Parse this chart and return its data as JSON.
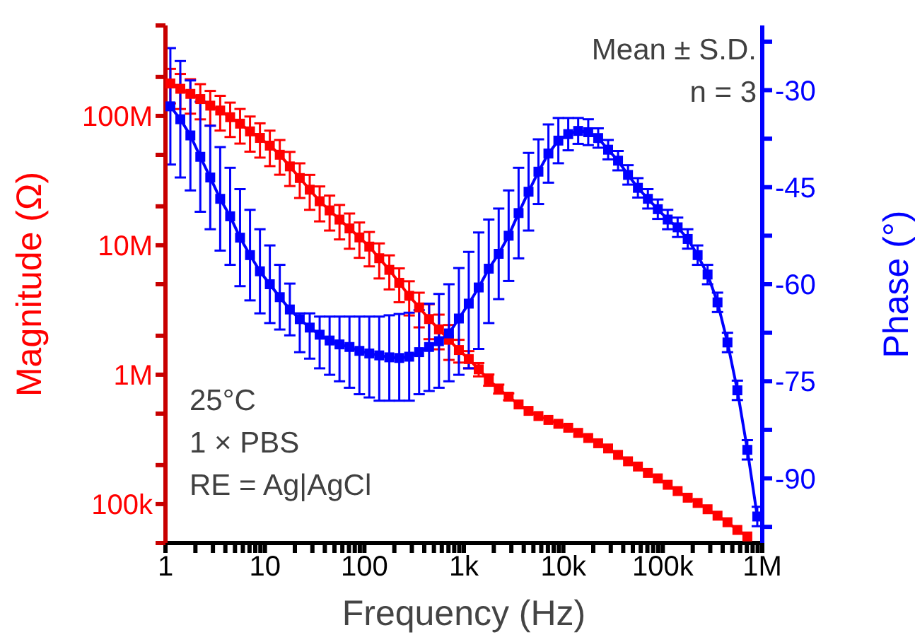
{
  "chart_data": {
    "type": "line",
    "xlabel": "Frequency (Hz)",
    "ylabel": "Magnitude (Ω)",
    "y2label": "Phase (°)",
    "annotations": [
      "Mean ± S.D.",
      "n = 3",
      "25°C",
      "1 × PBS",
      "RE = Ag|AgCl"
    ],
    "log": "xy",
    "marker": "square",
    "xlim": [
      1,
      1000000
    ],
    "xticks": [
      {
        "value": 1,
        "label": "1"
      },
      {
        "value": 2,
        "label": null
      },
      {
        "value": 3,
        "label": null
      },
      {
        "value": 4,
        "label": null
      },
      {
        "value": 5,
        "label": null
      },
      {
        "value": 6,
        "label": null
      },
      {
        "value": 7,
        "label": null
      },
      {
        "value": 8,
        "label": null
      },
      {
        "value": 9,
        "label": null
      },
      {
        "value": 10,
        "label": "10"
      },
      {
        "value": 20,
        "label": null
      },
      {
        "value": 30,
        "label": null
      },
      {
        "value": 40,
        "label": null
      },
      {
        "value": 50,
        "label": null
      },
      {
        "value": 60,
        "label": null
      },
      {
        "value": 70,
        "label": null
      },
      {
        "value": 80,
        "label": null
      },
      {
        "value": 90,
        "label": null
      },
      {
        "value": 100,
        "label": "100"
      },
      {
        "value": 200,
        "label": null
      },
      {
        "value": 300,
        "label": null
      },
      {
        "value": 400,
        "label": null
      },
      {
        "value": 500,
        "label": null
      },
      {
        "value": 600,
        "label": null
      },
      {
        "value": 700,
        "label": null
      },
      {
        "value": 800,
        "label": null
      },
      {
        "value": 900,
        "label": null
      },
      {
        "value": 1000,
        "label": "1k"
      },
      {
        "value": 2000,
        "label": null
      },
      {
        "value": 3000,
        "label": null
      },
      {
        "value": 4000,
        "label": null
      },
      {
        "value": 5000,
        "label": null
      },
      {
        "value": 6000,
        "label": null
      },
      {
        "value": 7000,
        "label": null
      },
      {
        "value": 8000,
        "label": null
      },
      {
        "value": 9000,
        "label": null
      },
      {
        "value": 10000,
        "label": "10k"
      },
      {
        "value": 20000,
        "label": null
      },
      {
        "value": 30000,
        "label": null
      },
      {
        "value": 40000,
        "label": null
      },
      {
        "value": 50000,
        "label": null
      },
      {
        "value": 60000,
        "label": null
      },
      {
        "value": 70000,
        "label": null
      },
      {
        "value": 80000,
        "label": null
      },
      {
        "value": 90000,
        "label": null
      },
      {
        "value": 100000,
        "label": "100k"
      },
      {
        "value": 200000,
        "label": null
      },
      {
        "value": 300000,
        "label": null
      },
      {
        "value": 400000,
        "label": null
      },
      {
        "value": 500000,
        "label": null
      },
      {
        "value": 600000,
        "label": null
      },
      {
        "value": 700000,
        "label": null
      },
      {
        "value": 800000,
        "label": null
      },
      {
        "value": 900000,
        "label": null
      },
      {
        "value": 1000000,
        "label": "1M"
      }
    ],
    "ylim": [
      50000,
      500000000
    ],
    "yticks": [
      {
        "value": 50000,
        "label": null
      },
      {
        "value": 100000,
        "label": "100k"
      },
      {
        "value": 200000,
        "label": null
      },
      {
        "value": 500000,
        "label": null
      },
      {
        "value": 1000000,
        "label": "1M"
      },
      {
        "value": 2000000,
        "label": null
      },
      {
        "value": 5000000,
        "label": null
      },
      {
        "value": 10000000,
        "label": "10M"
      },
      {
        "value": 20000000,
        "label": null
      },
      {
        "value": 50000000,
        "label": null
      },
      {
        "value": 100000000,
        "label": "100M"
      },
      {
        "value": 200000000,
        "label": null
      },
      {
        "value": 500000000,
        "label": null
      }
    ],
    "y2lim": [
      -100,
      -20
    ],
    "y2ticks": [
      {
        "value": -97.5,
        "label": null
      },
      {
        "value": -90,
        "label": "-90"
      },
      {
        "value": -82.5,
        "label": null
      },
      {
        "value": -75,
        "label": "-75"
      },
      {
        "value": -67.5,
        "label": null
      },
      {
        "value": -60,
        "label": "-60"
      },
      {
        "value": -52.5,
        "label": null
      },
      {
        "value": -45,
        "label": "-45"
      },
      {
        "value": -37.5,
        "label": null
      },
      {
        "value": -30,
        "label": "-30"
      },
      {
        "value": -22.5,
        "label": null
      }
    ],
    "x": [
      1.12,
      1.41,
      1.78,
      2.24,
      2.82,
      3.55,
      4.47,
      5.62,
      7.08,
      8.91,
      11.2,
      14.1,
      17.8,
      22.4,
      28.2,
      35.5,
      44.7,
      56.2,
      70.8,
      89.1,
      112,
      141,
      178,
      224,
      282,
      355,
      447,
      562,
      708,
      891,
      1120,
      1410,
      1780,
      2240,
      2820,
      3550,
      4470,
      5620,
      7080,
      8910,
      11200,
      14100,
      17800,
      22400,
      28200,
      35500,
      44700,
      56200,
      70800,
      89100,
      112000,
      141000,
      178000,
      224000,
      282000,
      355000,
      447000,
      562000,
      708000,
      891000
    ],
    "series": [
      {
        "color": "#ff0000",
        "values": [
          178000000,
          162000000,
          148000000,
          135000000,
          120000000,
          110000000,
          97700000,
          87100000,
          75900000,
          67600000,
          58900000,
          50100000,
          40700000,
          33100000,
          26900000,
          21900000,
          18600000,
          15800000,
          13500000,
          11500000,
          9770000,
          7940000,
          6460000,
          5130000,
          4070000,
          3310000,
          2690000,
          2240000,
          1860000,
          1550000,
          1320000,
          1100000,
          912000,
          776000,
          676000,
          589000,
          525000,
          479000,
          447000,
          417000,
          389000,
          355000,
          324000,
          295000,
          269000,
          240000,
          214000,
          195000,
          174000,
          158000,
          141000,
          126000,
          112000,
          102000,
          91200,
          81300,
          72400,
          63100,
          56200,
          null
        ],
        "errors": [
          53000000,
          49000000,
          44000000,
          41000000,
          36000000,
          33000000,
          29000000,
          26000000,
          23000000,
          20000000,
          18000000,
          15000000,
          12000000,
          9900000,
          8100000,
          6600000,
          5600000,
          4700000,
          4100000,
          3500000,
          2900000,
          2400000,
          1900000,
          1500000,
          1200000,
          990000,
          810000,
          670000,
          560000,
          310000,
          200000,
          130000,
          91000,
          62000,
          41000,
          null,
          null,
          null,
          null,
          null,
          null,
          null,
          null,
          null,
          null,
          null,
          null,
          null,
          null,
          null,
          null,
          null,
          null,
          null,
          null,
          null,
          null,
          null,
          null,
          null
        ]
      },
      {
        "color": "#0000ff",
        "axis": "y2",
        "values": [
          -32.5,
          -34.5,
          -37,
          -40.3,
          -43.5,
          -46.8,
          -49.5,
          -52.8,
          -55.5,
          -58,
          -60,
          -62,
          -63.9,
          -65.4,
          -66.7,
          -67.8,
          -68.7,
          -69.3,
          -69.7,
          -70.3,
          -70.7,
          -71,
          -71.3,
          -71.4,
          -71.2,
          -70.5,
          -69.7,
          -68.8,
          -67.6,
          -65.3,
          -63,
          -60.5,
          -57.6,
          -55.3,
          -52.5,
          -49,
          -45.7,
          -42.6,
          -39.8,
          -37.8,
          -36.8,
          -36.3,
          -36.5,
          -37.4,
          -39.2,
          -40.9,
          -43.1,
          -45.1,
          -46.8,
          -48.4,
          -50,
          -51.2,
          -53,
          -55.5,
          -58.5,
          -62.8,
          -69,
          -76.4,
          -85.6,
          -95.9
        ],
        "errors": [
          9,
          9,
          8.5,
          8.5,
          8,
          8,
          7.5,
          7.5,
          7,
          6.5,
          6,
          5,
          4,
          [
            -70.5,
            -64.5
          ],
          [
            -71.5,
            -64.5
          ],
          [
            -73,
            -65
          ],
          [
            -74,
            -65
          ],
          [
            -75,
            -65
          ],
          [
            -76,
            -65
          ],
          [
            -77,
            -65
          ],
          [
            -77.5,
            -65
          ],
          [
            -78,
            -65
          ],
          [
            -78,
            -64.8
          ],
          [
            -78,
            -64.6
          ],
          [
            -78,
            -64.4
          ],
          [
            -77,
            -64
          ],
          [
            -76.5,
            -63
          ],
          [
            -76,
            -61.5
          ],
          [
            -75,
            -60
          ],
          [
            -74,
            -57.5
          ],
          [
            -73,
            -55
          ],
          [
            -70,
            -52
          ],
          [
            -66,
            -50
          ],
          7,
          7,
          7,
          6,
          5,
          4.5,
          3.5,
          2.5,
          2,
          2,
          1.5,
          1.5,
          1.5,
          1.5,
          1.5,
          1.5,
          1.5,
          1.5,
          1.5,
          1.5,
          1.5,
          1.5,
          1.5,
          1.5,
          1.5,
          1.5,
          1.5
        ]
      }
    ]
  }
}
